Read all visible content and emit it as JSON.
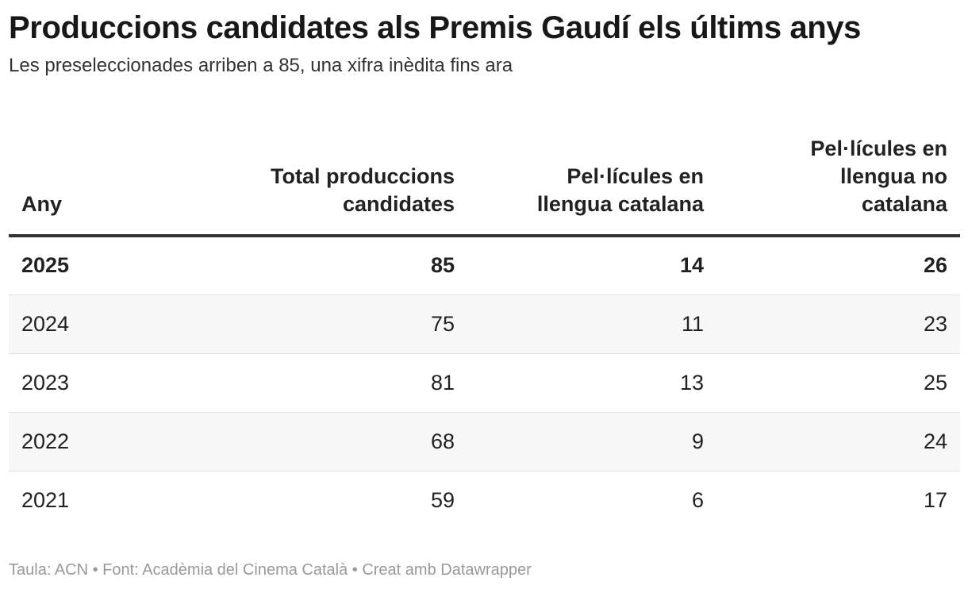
{
  "title": "Produccions candidates als Premis Gaudí els últims anys",
  "subtitle": "Les preseleccionades arriben a 85, una xifra inèdita fins ara",
  "footer": "Taula: ACN • Font: Acadèmia del Cinema Català • Creat amb Datawrapper",
  "colors": {
    "header_rule": "#333333",
    "row_shade": "#f7f7f7",
    "row_divider": "#e2e2e2",
    "footer_text": "#999999"
  },
  "chart_data": {
    "type": "table",
    "columns": [
      "Any",
      "Total produccions candidates",
      "Pel·lícules en llengua catalana",
      "Pel·lícules en llengua no catalana"
    ],
    "rows": [
      [
        "2025",
        "85",
        "14",
        "26"
      ],
      [
        "2024",
        "75",
        "11",
        "23"
      ],
      [
        "2023",
        "81",
        "13",
        "25"
      ],
      [
        "2022",
        "68",
        "9",
        "24"
      ],
      [
        "2021",
        "59",
        "6",
        "17"
      ]
    ]
  }
}
